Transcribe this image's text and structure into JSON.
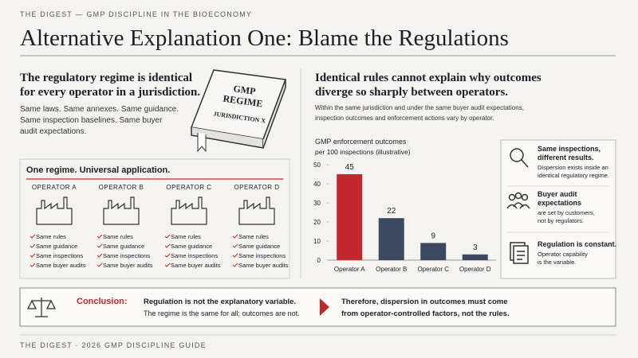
{
  "header": {
    "kicker": "THE DIGEST — GMP DISCIPLINE IN THE BIOECONOMY",
    "title": "Alternative Explanation One: Blame the Regulations"
  },
  "left": {
    "heading": [
      "The regulatory regime is identical",
      "for every operator in a jurisdiction."
    ],
    "body": [
      "Same laws. Same annexes. Same guidance.",
      "Same inspection baselines. Same buyer",
      "audit expectations."
    ],
    "book": [
      "GMP",
      "REGIME",
      "JURISDICTION X"
    ],
    "box_title": "One regime. Universal application.",
    "operators": [
      {
        "name": "OPERATOR A",
        "checks": [
          "Same rules",
          "Same guidance",
          "Same inspections",
          "Same buyer audits"
        ]
      },
      {
        "name": "OPERATOR B",
        "checks": [
          "Same rules",
          "Same guidance",
          "Same inspections",
          "Same buyer audits"
        ]
      },
      {
        "name": "OPERATOR C",
        "checks": [
          "Same rules",
          "Same guidance",
          "Same inspections",
          "Same buyer audits"
        ]
      },
      {
        "name": "OPERATOR D",
        "checks": [
          "Same rules",
          "Same guidance",
          "Same inspections",
          "Same buyer audits"
        ]
      }
    ]
  },
  "right": {
    "heading": [
      "Identical rules cannot explain why outcomes",
      "diverge so sharply between operators."
    ],
    "body": [
      "Within the same jurisdiction and under the same buyer audit expectations,",
      "inspection outcomes and enforcement actions vary by operator."
    ]
  },
  "chart_data": {
    "type": "bar",
    "title": "GMP enforcement outcomes",
    "subtitle": "per 100 inspections (illustrative)",
    "categories": [
      "Operator A",
      "Operator B",
      "Operator C",
      "Operator D"
    ],
    "values": [
      45,
      22,
      9,
      3
    ],
    "colors": [
      "#c0282d",
      "#3b4a62",
      "#3b4a62",
      "#3b4a62"
    ],
    "ylim": [
      0,
      50
    ],
    "yticks": [
      0,
      10,
      20,
      30,
      40,
      50
    ],
    "grid": false
  },
  "sidebar": [
    {
      "title": [
        "Same inspections,",
        "different results."
      ],
      "text": [
        "Dispersion exists inside an",
        "identical regulatory regime."
      ]
    },
    {
      "title": [
        "Buyer audit",
        "expectations"
      ],
      "text": [
        "are set by customers,",
        "not by regulators."
      ]
    },
    {
      "title": [
        "Regulation is constant."
      ],
      "text": [
        "Operator capability",
        "is the variable."
      ]
    }
  ],
  "conclusion": {
    "label": "Conclusion:",
    "statement": "Regulation is not the explanatory variable.",
    "detail": "The regime is the same for all; outcomes are not.",
    "therefore": [
      "Therefore, dispersion in outcomes must come",
      "from operator-controlled factors, not the rules."
    ]
  },
  "footer": "THE DIGEST · 2026 GMP DISCIPLINE GUIDE"
}
